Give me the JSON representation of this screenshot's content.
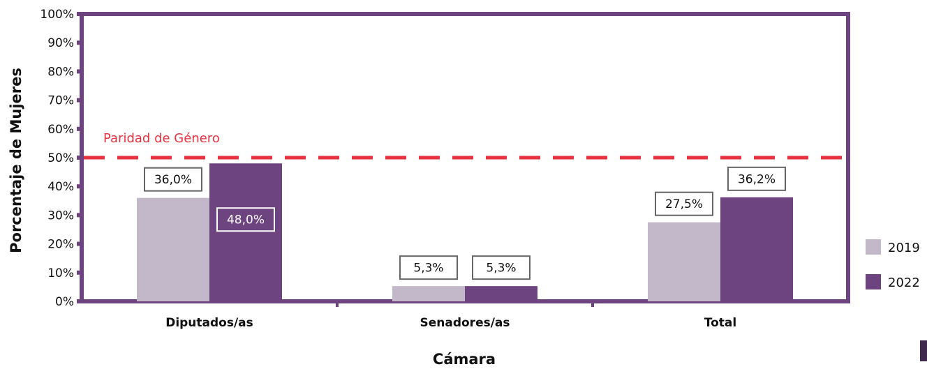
{
  "chart_data": {
    "type": "bar",
    "categories": [
      "Diputados/as",
      "Senadores/as",
      "Total"
    ],
    "series": [
      {
        "name": "2019",
        "values": [
          36.0,
          5.3,
          27.5
        ],
        "labels": [
          "36,0%",
          "5,3%",
          "27,5%"
        ],
        "color": "#c3b8c9"
      },
      {
        "name": "2022",
        "values": [
          48.0,
          5.3,
          36.2
        ],
        "labels": [
          "48,0%",
          "5,3%",
          "36,2%"
        ],
        "color": "#6e4480"
      }
    ],
    "xlabel": "Cámara",
    "ylabel": "Porcentaje de Mujeres",
    "ylim": [
      0,
      100
    ],
    "yticks": [
      0,
      10,
      20,
      30,
      40,
      50,
      60,
      70,
      80,
      90,
      100
    ],
    "ytick_labels": [
      "0%",
      "10%",
      "20%",
      "30%",
      "40%",
      "50%",
      "60%",
      "70%",
      "80%",
      "90%",
      "100%"
    ],
    "reference_line": {
      "value": 50,
      "label": "Paridad de Género",
      "color": "#e8323f"
    },
    "frame_color": "#6e4480",
    "legend_position": "right"
  }
}
